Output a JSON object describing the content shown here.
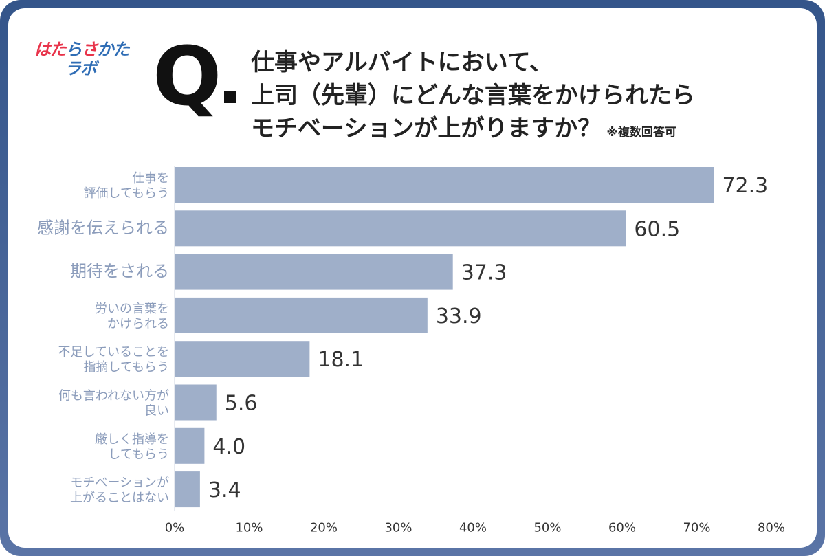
{
  "logo": {
    "line1": [
      {
        "t": "は",
        "c": "#e8334a"
      },
      {
        "t": "た",
        "c": "#e8334a"
      },
      {
        "t": "ら",
        "c": "#2f6db5"
      },
      {
        "t": "さ",
        "c": "#e8334a"
      },
      {
        "t": "か",
        "c": "#2f6db5"
      },
      {
        "t": "た",
        "c": "#2f6db5"
      }
    ],
    "line2": [
      {
        "t": "ラ",
        "c": "#2f6db5"
      },
      {
        "t": "ボ",
        "c": "#2f6db5"
      }
    ]
  },
  "question": {
    "mark": "Q",
    "lines": [
      "仕事やアルバイトにおいて、",
      "上司（先輩）にどんな言葉をかけられたら",
      "モチベーションが上がりますか？"
    ],
    "note": "※複数回答可"
  },
  "colors": {
    "bar": "#9fafc9",
    "frame": "#3f5f92",
    "label": "#8b9cbb",
    "value": "#333333"
  },
  "chart_data": {
    "type": "bar",
    "orientation": "horizontal",
    "categories": [
      [
        "仕事を",
        "評価してもらう"
      ],
      [
        "感謝を伝えられる"
      ],
      [
        "期待をされる"
      ],
      [
        "労いの言葉を",
        "かけられる"
      ],
      [
        "不足していることを",
        "指摘してもらう"
      ],
      [
        "何も言われない方が",
        "良い"
      ],
      [
        "厳しく指導を",
        "してもらう"
      ],
      [
        "モチベーションが",
        "上がることはない"
      ]
    ],
    "values": [
      72.3,
      60.5,
      37.3,
      33.9,
      18.1,
      5.6,
      4.0,
      3.4
    ],
    "value_labels": [
      "72.3",
      "60.5",
      "37.3",
      "33.9",
      "18.1",
      "5.6",
      "4.0",
      "3.4"
    ],
    "xlim": [
      0,
      80
    ],
    "xticks": [
      "0%",
      "10%",
      "20%",
      "30%",
      "40%",
      "50%",
      "60%",
      "70%",
      "80%"
    ],
    "grid": false
  }
}
